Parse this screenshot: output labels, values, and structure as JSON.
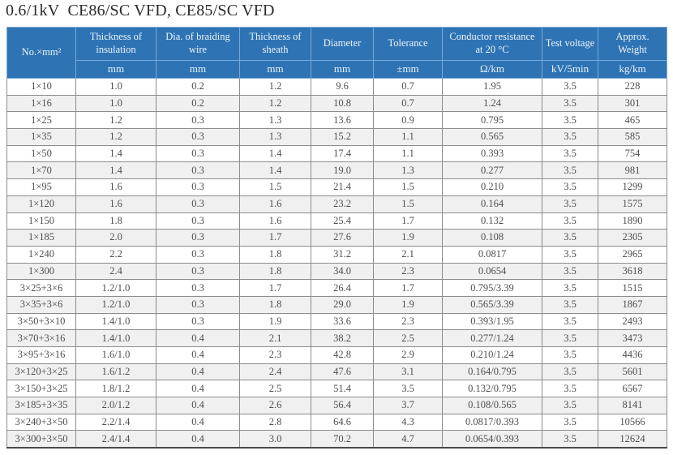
{
  "title": "0.6/1kV  CE86/SC VFD, CE85/SC VFD",
  "colors": {
    "header_bg": "#2e74b5",
    "header_text": "#edf3fa",
    "row_alt_bg": "#f0f0f0",
    "body_text": "#4f4f4f",
    "grid_line": "#8c8c8c"
  },
  "table": {
    "columns": [
      {
        "label": "No.×mm²",
        "unit": ""
      },
      {
        "label": "Thickness of insulation",
        "unit": "mm"
      },
      {
        "label": "Dia. of braiding wire",
        "unit": "mm"
      },
      {
        "label": "Thickness of sheath",
        "unit": "mm"
      },
      {
        "label": "Diameter",
        "unit": "mm"
      },
      {
        "label": "Tolerance",
        "unit": "±mm"
      },
      {
        "label": "Conductor resistance at 20 °C",
        "unit": "Ω/km"
      },
      {
        "label": "Test voltage",
        "unit": "kV/5min"
      },
      {
        "label": "Approx. Weight",
        "unit": "kg/km"
      }
    ],
    "rows": [
      [
        "1×10",
        "1.0",
        "0.2",
        "1.2",
        "9.6",
        "0.7",
        "1.95",
        "3.5",
        "228"
      ],
      [
        "1×16",
        "1.0",
        "0.2",
        "1.2",
        "10.8",
        "0.7",
        "1.24",
        "3.5",
        "301"
      ],
      [
        "1×25",
        "1.2",
        "0.3",
        "1.3",
        "13.6",
        "0.9",
        "0.795",
        "3.5",
        "465"
      ],
      [
        "1×35",
        "1.2",
        "0.3",
        "1.3",
        "15.2",
        "1.1",
        "0.565",
        "3.5",
        "585"
      ],
      [
        "1×50",
        "1.4",
        "0.3",
        "1.4",
        "17.4",
        "1.1",
        "0.393",
        "3.5",
        "754"
      ],
      [
        "1×70",
        "1.4",
        "0.3",
        "1.4",
        "19.0",
        "1.3",
        "0.277",
        "3.5",
        "981"
      ],
      [
        "1×95",
        "1.6",
        "0.3",
        "1.5",
        "21.4",
        "1.5",
        "0.210",
        "3.5",
        "1299"
      ],
      [
        "1×120",
        "1.6",
        "0.3",
        "1.6",
        "23.2",
        "1.5",
        "0.164",
        "3.5",
        "1575"
      ],
      [
        "1×150",
        "1.8",
        "0.3",
        "1.6",
        "25.4",
        "1.7",
        "0.132",
        "3.5",
        "1890"
      ],
      [
        "1×185",
        "2.0",
        "0.3",
        "1.7",
        "27.6",
        "1.9",
        "0.108",
        "3.5",
        "2305"
      ],
      [
        "1×240",
        "2.2",
        "0.3",
        "1.8",
        "31.2",
        "2.1",
        "0.0817",
        "3.5",
        "2965"
      ],
      [
        "1×300",
        "2.4",
        "0.3",
        "1.8",
        "34.0",
        "2.3",
        "0.0654",
        "3.5",
        "3618"
      ],
      [
        "3×25+3×6",
        "1.2/1.0",
        "0.3",
        "1.7",
        "26.4",
        "1.7",
        "0.795/3.39",
        "3.5",
        "1515"
      ],
      [
        "3×35+3×6",
        "1.2/1.0",
        "0.3",
        "1.8",
        "29.0",
        "1.9",
        "0.565/3.39",
        "3.5",
        "1867"
      ],
      [
        "3×50+3×10",
        "1.4/1.0",
        "0.3",
        "1.9",
        "33.6",
        "2.3",
        "0.393/1.95",
        "3.5",
        "2493"
      ],
      [
        "3×70+3×16",
        "1.4/1.0",
        "0.4",
        "2.1",
        "38.2",
        "2.5",
        "0.277/1.24",
        "3.5",
        "3473"
      ],
      [
        "3×95+3×16",
        "1.6/1.0",
        "0.4",
        "2.3",
        "42.8",
        "2.9",
        "0.210/1.24",
        "3.5",
        "4436"
      ],
      [
        "3×120+3×25",
        "1.6/1.2",
        "0.4",
        "2.4",
        "47.6",
        "3.1",
        "0.164/0.795",
        "3.5",
        "5601"
      ],
      [
        "3×150+3×25",
        "1.8/1.2",
        "0.4",
        "2.5",
        "51.4",
        "3.5",
        "0.132/0.795",
        "3.5",
        "6567"
      ],
      [
        "3×185+3×35",
        "2.0/1.2",
        "0.4",
        "2.6",
        "56.4",
        "3.7",
        "0.108/0.565",
        "3.5",
        "8141"
      ],
      [
        "3×240+3×50",
        "2.2/1.4",
        "0.4",
        "2.8",
        "64.6",
        "4.3",
        "0.0817/0.393",
        "3.5",
        "10566"
      ],
      [
        "3×300+3×50",
        "2.4/1.4",
        "0.4",
        "3.0",
        "70.2",
        "4.7",
        "0.0654/0.393",
        "3.5",
        "12624"
      ]
    ]
  }
}
